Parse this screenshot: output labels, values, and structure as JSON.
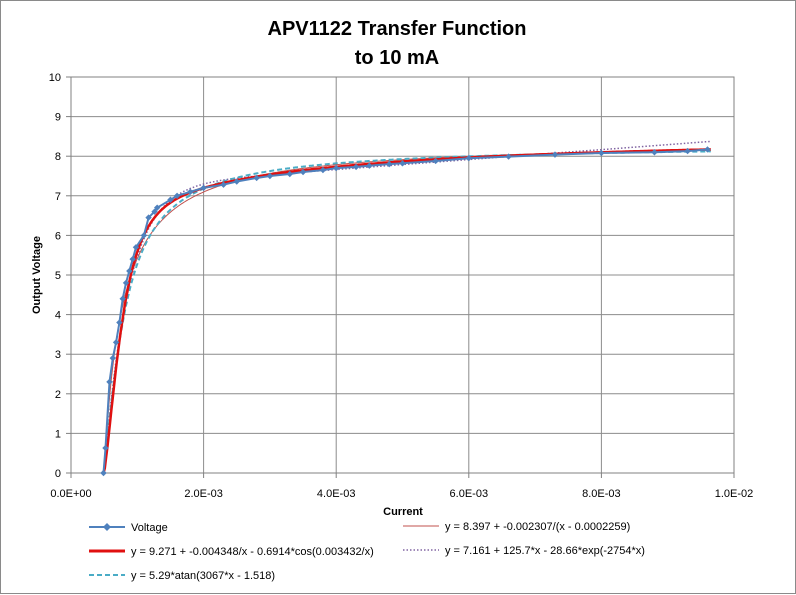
{
  "chart_data": {
    "type": "scatter",
    "title_line1": "APV1122 Transfer Function",
    "title_line2": "to 10 mA",
    "xlabel": "Current",
    "ylabel": "Output Voltage",
    "xlim": [
      0,
      0.01
    ],
    "ylim": [
      0,
      10
    ],
    "x_ticks": [
      0,
      0.002,
      0.004,
      0.006,
      0.008,
      0.01
    ],
    "x_tick_labels": [
      "0.0E+00",
      "2.0E-03",
      "4.0E-03",
      "6.0E-03",
      "8.0E-03",
      "1.0E-02"
    ],
    "y_ticks": [
      0,
      1,
      2,
      3,
      4,
      5,
      6,
      7,
      8,
      9,
      10
    ],
    "y_tick_labels": [
      "0",
      "1",
      "2",
      "3",
      "4",
      "5",
      "6",
      "7",
      "8",
      "9",
      "10"
    ],
    "grid": true,
    "legend_position": "bottom",
    "series": [
      {
        "name": "Voltage",
        "style": "line-marker",
        "color": "#4f81bd",
        "x": [
          0.00049,
          0.00052,
          0.00058,
          0.00063,
          0.00068,
          0.00073,
          0.00078,
          0.00083,
          0.00088,
          0.00093,
          0.00098,
          0.0011,
          0.00117,
          0.00126,
          0.0013,
          0.0015,
          0.0016,
          0.0018,
          0.002,
          0.0023,
          0.0025,
          0.0028,
          0.003,
          0.0033,
          0.0035,
          0.0038,
          0.004,
          0.0043,
          0.0045,
          0.0048,
          0.005,
          0.0055,
          0.006,
          0.0066,
          0.0073,
          0.008,
          0.0088,
          0.0093,
          0.0096
        ],
        "y": [
          0.0,
          0.63,
          2.3,
          2.9,
          3.3,
          3.8,
          4.4,
          4.8,
          5.1,
          5.4,
          5.7,
          6.0,
          6.45,
          6.6,
          6.7,
          6.9,
          7.0,
          7.1,
          7.2,
          7.28,
          7.36,
          7.45,
          7.5,
          7.55,
          7.6,
          7.65,
          7.7,
          7.73,
          7.76,
          7.8,
          7.82,
          7.88,
          7.95,
          7.99,
          8.04,
          8.08,
          8.1,
          8.13,
          8.17
        ]
      },
      {
        "name": "y = 8.397 + -0.002307/(x - 0.0002259)",
        "style": "thin-line",
        "color": "#c0504d"
      },
      {
        "name": "y = 9.271 + -0.004348/x - 0.6914*cos(0.003432/x)",
        "style": "thick-line",
        "color": "#e01010"
      },
      {
        "name": "y = 7.161 + 125.7*x - 28.66*exp(-2754*x)",
        "style": "dotted-line",
        "color": "#8064a2"
      },
      {
        "name": "y = 5.29*atan(3067*x - 1.518)",
        "style": "dashed-line",
        "color": "#4aacc6"
      }
    ]
  }
}
